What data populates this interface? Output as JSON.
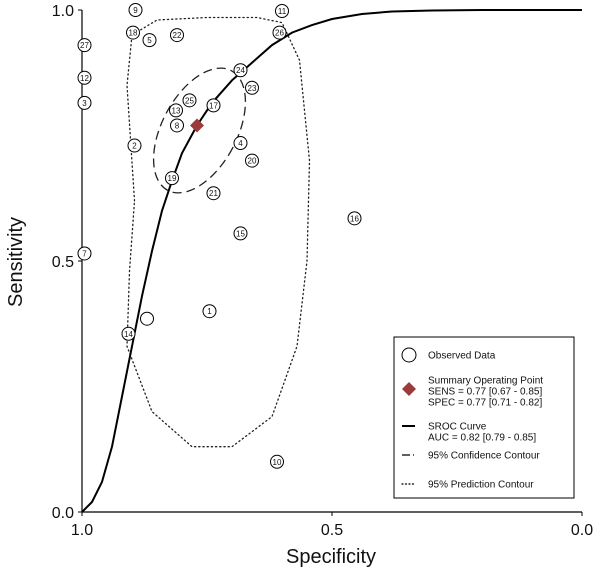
{
  "chart_data": {
    "type": "scatter",
    "xlabel": "Specificity",
    "ylabel": "Sensitivity",
    "x_reversed": true,
    "xlim": [
      1.0,
      0.0
    ],
    "ylim": [
      0.0,
      1.0
    ],
    "xticks": [
      {
        "value": 1.0,
        "label": "1.0"
      },
      {
        "value": 0.5,
        "label": "0.5"
      },
      {
        "value": 0.0,
        "label": "0.0"
      }
    ],
    "yticks": [
      {
        "value": 0.0,
        "label": "0.0"
      },
      {
        "value": 0.5,
        "label": "0.5"
      },
      {
        "value": 1.0,
        "label": "1.0"
      }
    ],
    "grid": false,
    "legend_position": "bottom-right",
    "observed_data": [
      {
        "id": "1",
        "specificity": 0.745,
        "sensitivity": 0.4
      },
      {
        "id": "2",
        "specificity": 0.895,
        "sensitivity": 0.73
      },
      {
        "id": "3",
        "specificity": 0.995,
        "sensitivity": 0.815
      },
      {
        "id": "4",
        "specificity": 0.683,
        "sensitivity": 0.735
      },
      {
        "id": "5",
        "specificity": 0.865,
        "sensitivity": 0.94
      },
      {
        "id": "7",
        "specificity": 0.995,
        "sensitivity": 0.515
      },
      {
        "id": "8",
        "specificity": 0.81,
        "sensitivity": 0.77
      },
      {
        "id": "9",
        "specificity": 0.893,
        "sensitivity": 1.0
      },
      {
        "id": "10",
        "specificity": 0.61,
        "sensitivity": 0.1
      },
      {
        "id": "11",
        "specificity": 0.6,
        "sensitivity": 0.998
      },
      {
        "id": "12",
        "specificity": 0.995,
        "sensitivity": 0.865
      },
      {
        "id": "13",
        "specificity": 0.812,
        "sensitivity": 0.8
      },
      {
        "id": "14",
        "specificity": 0.907,
        "sensitivity": 0.355
      },
      {
        "id": "15",
        "specificity": 0.683,
        "sensitivity": 0.555
      },
      {
        "id": "16",
        "specificity": 0.455,
        "sensitivity": 0.585
      },
      {
        "id": "17",
        "specificity": 0.737,
        "sensitivity": 0.81
      },
      {
        "id": "18",
        "specificity": 0.898,
        "sensitivity": 0.955
      },
      {
        "id": "19",
        "specificity": 0.82,
        "sensitivity": 0.665
      },
      {
        "id": "20",
        "specificity": 0.66,
        "sensitivity": 0.7
      },
      {
        "id": "21",
        "specificity": 0.737,
        "sensitivity": 0.635
      },
      {
        "id": "22",
        "specificity": 0.81,
        "sensitivity": 0.95
      },
      {
        "id": "23",
        "specificity": 0.66,
        "sensitivity": 0.845
      },
      {
        "id": "24",
        "specificity": 0.683,
        "sensitivity": 0.88
      },
      {
        "id": "25",
        "specificity": 0.785,
        "sensitivity": 0.82
      },
      {
        "id": "26",
        "specificity": 0.605,
        "sensitivity": 0.955
      },
      {
        "id": "27",
        "specificity": 0.995,
        "sensitivity": 0.93
      }
    ],
    "extra_points": [
      {
        "specificity": 0.87,
        "sensitivity": 0.385
      }
    ],
    "summary_point": {
      "specificity": 0.77,
      "sensitivity": 0.77
    },
    "sroc_curve": [
      [
        1.0,
        0.0
      ],
      [
        0.98,
        0.02
      ],
      [
        0.96,
        0.06
      ],
      [
        0.94,
        0.13
      ],
      [
        0.92,
        0.23
      ],
      [
        0.9,
        0.33
      ],
      [
        0.88,
        0.43
      ],
      [
        0.86,
        0.52
      ],
      [
        0.84,
        0.6
      ],
      [
        0.82,
        0.66
      ],
      [
        0.8,
        0.715
      ],
      [
        0.77,
        0.77
      ],
      [
        0.74,
        0.815
      ],
      [
        0.7,
        0.86
      ],
      [
        0.66,
        0.895
      ],
      [
        0.62,
        0.93
      ],
      [
        0.58,
        0.955
      ],
      [
        0.54,
        0.97
      ],
      [
        0.5,
        0.982
      ],
      [
        0.44,
        0.992
      ],
      [
        0.38,
        0.997
      ],
      [
        0.3,
        0.999
      ],
      [
        0.2,
        1.0
      ],
      [
        0.0,
        1.0
      ]
    ],
    "confidence_contour": {
      "center_specificity": 0.765,
      "center_sensitivity": 0.76,
      "radius_specificity": 0.075,
      "radius_sensitivity": 0.135,
      "rotation_deg": 28
    },
    "prediction_contour": [
      [
        0.895,
        0.62
      ],
      [
        0.91,
        0.85
      ],
      [
        0.9,
        0.95
      ],
      [
        0.85,
        0.98
      ],
      [
        0.75,
        0.985
      ],
      [
        0.65,
        0.985
      ],
      [
        0.6,
        0.975
      ],
      [
        0.565,
        0.9
      ],
      [
        0.545,
        0.7
      ],
      [
        0.55,
        0.5
      ],
      [
        0.57,
        0.33
      ],
      [
        0.62,
        0.19
      ],
      [
        0.7,
        0.13
      ],
      [
        0.78,
        0.13
      ],
      [
        0.86,
        0.2
      ],
      [
        0.91,
        0.33
      ],
      [
        0.905,
        0.48
      ],
      [
        0.895,
        0.62
      ]
    ],
    "legend": [
      {
        "key": "observed",
        "label": "Observed Data"
      },
      {
        "key": "summary",
        "label": "Summary Operating Point",
        "details": [
          "SENS = 0.77 [0.67 - 0.85]",
          "SPEC = 0.77 [0.71 - 0.82]"
        ]
      },
      {
        "key": "sroc",
        "label": "SROC Curve",
        "details": [
          "AUC = 0.82 [0.79 - 0.85]"
        ]
      },
      {
        "key": "confidence",
        "label": "95% Confidence Contour"
      },
      {
        "key": "prediction",
        "label": "95% Prediction Contour"
      }
    ],
    "colors": {
      "axis": "#000000",
      "summary": "#9b3b3b",
      "curve": "#000000",
      "circle_fill": "#ffffff"
    }
  }
}
